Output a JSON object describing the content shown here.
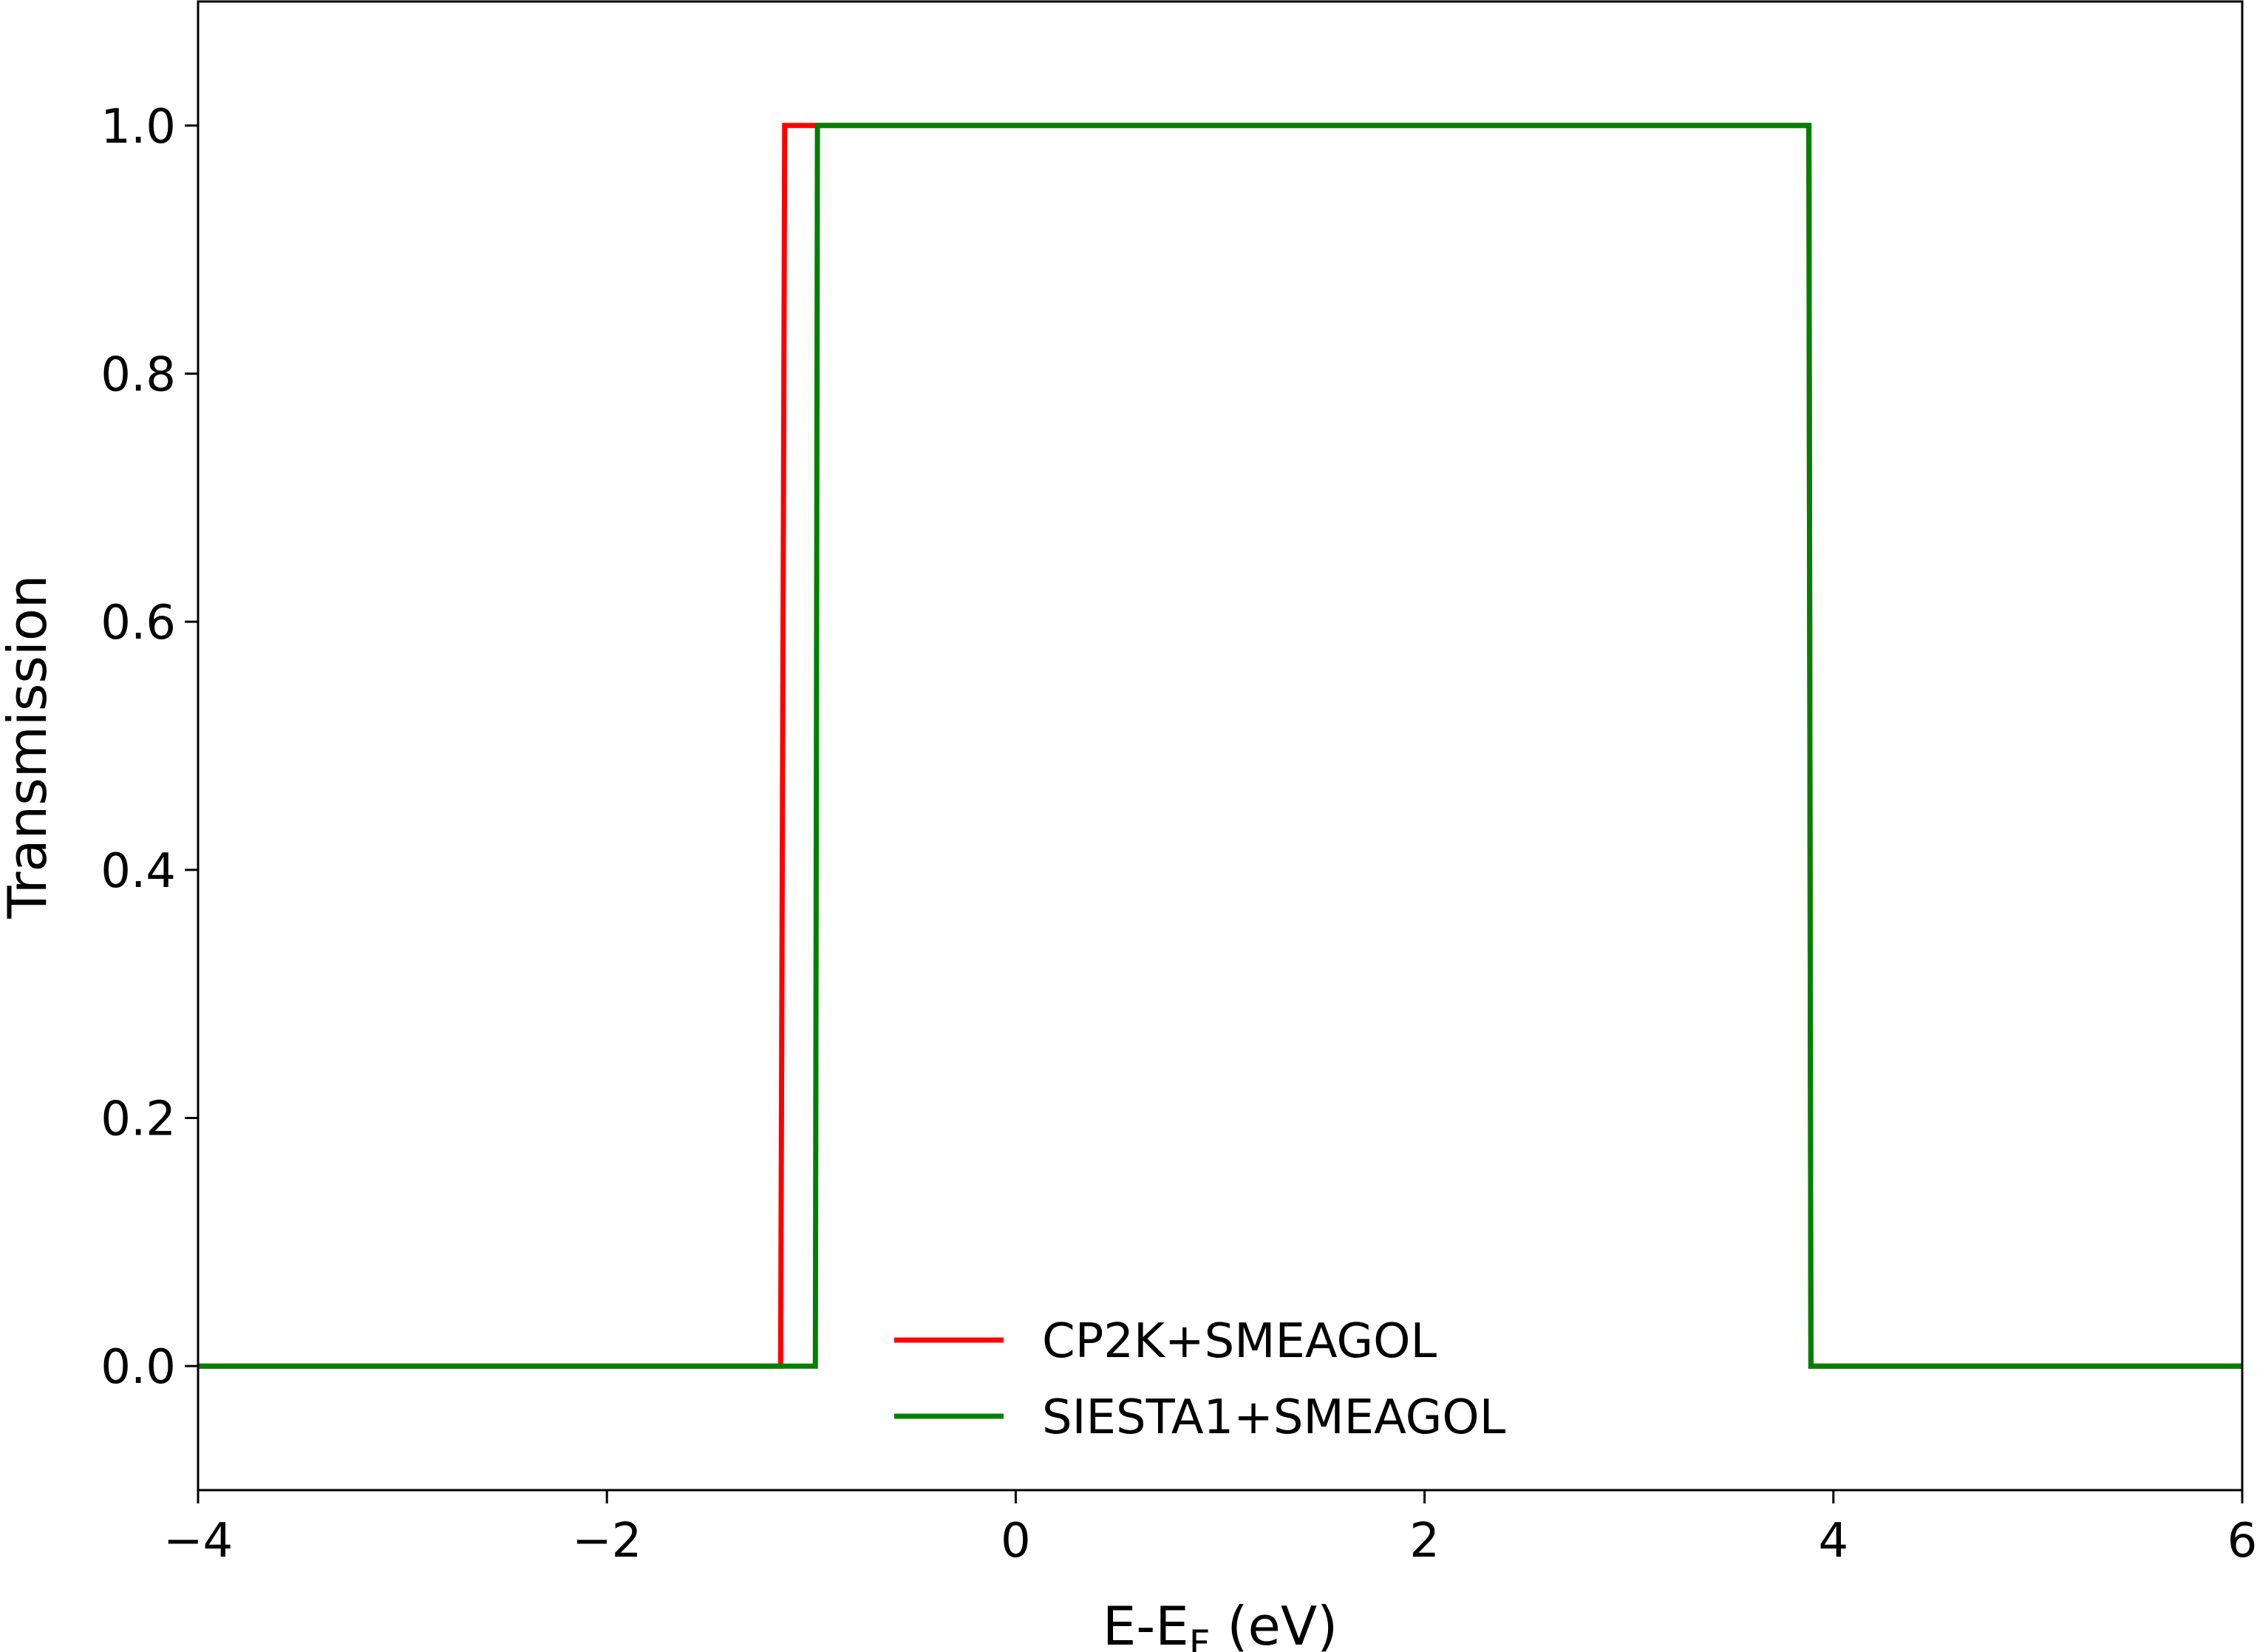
{
  "chart_data": {
    "type": "line",
    "xlabel": {
      "main": "E-E",
      "sub": "F",
      "suffix": " (eV)"
    },
    "ylabel": "Transmission",
    "xlim": [
      -4,
      6
    ],
    "ylim": [
      -0.1,
      1.1
    ],
    "xticks": [
      -4,
      -2,
      0,
      2,
      4,
      6
    ],
    "xtick_labels": [
      "−4",
      "−2",
      "0",
      "2",
      "4",
      "6"
    ],
    "yticks": [
      0.0,
      0.2,
      0.4,
      0.6,
      0.8,
      1.0
    ],
    "ytick_labels": [
      "0.0",
      "0.2",
      "0.4",
      "0.6",
      "0.8",
      "1.0"
    ],
    "grid": false,
    "legend_position": "lower-center",
    "series": [
      {
        "name": "CP2K+SMEAGOL",
        "color": "#ff0000",
        "x": [
          -4.0,
          -1.15,
          -1.13,
          -1.0,
          3.87,
          3.88,
          3.89,
          6.0
        ],
        "y": [
          0.0,
          0.0,
          1.0,
          1.0,
          1.0,
          1.0,
          0.0,
          0.0
        ]
      },
      {
        "name": "SIESTA1+SMEAGOL",
        "color": "#008000",
        "x": [
          -4.0,
          -0.98,
          -0.97,
          3.87,
          3.88,
          3.89,
          6.0
        ],
        "y": [
          0.0,
          0.0,
          1.0,
          1.0,
          1.0,
          0.0,
          0.0
        ]
      }
    ]
  }
}
